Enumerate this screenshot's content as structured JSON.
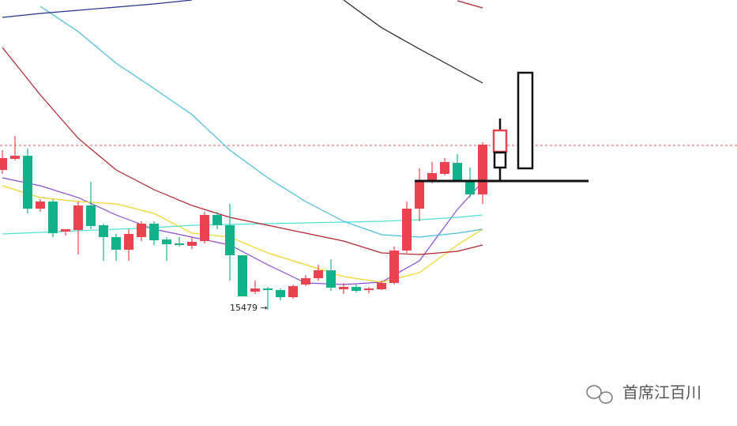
{
  "chart_data": {
    "type": "candlestick",
    "categories": [
      null,
      null,
      null,
      null,
      null,
      null,
      null,
      null,
      null,
      null,
      null,
      null,
      null,
      null,
      null,
      null,
      null,
      null,
      null,
      null,
      null,
      null,
      null,
      null,
      null,
      null,
      null,
      null,
      null,
      null,
      null,
      null,
      null,
      null,
      null,
      null,
      null,
      null,
      null
    ],
    "open": [
      16119,
      16175,
      16191,
      15923,
      15959,
      15807,
      15815,
      15939,
      15839,
      15779,
      15715,
      15779,
      15847,
      15767,
      15747,
      15735,
      15759,
      15891,
      15839,
      15687,
      15503,
      15519,
      15511,
      15475,
      15539,
      15571,
      15611,
      15515,
      15527,
      15511,
      15515,
      15547,
      15711,
      15923,
      16063,
      16099,
      16155,
      16067,
      15995
    ],
    "high": [
      16219,
      16291,
      16227,
      15971,
      15971,
      15819,
      15959,
      16059,
      15847,
      15795,
      15819,
      15859,
      15859,
      15779,
      15779,
      15779,
      15907,
      15907,
      15947,
      15687,
      15559,
      15527,
      15519,
      15539,
      15587,
      15639,
      15667,
      15547,
      15539,
      15527,
      15559,
      15731,
      15959,
      16127,
      16159,
      16179,
      16199,
      16131,
      16259
    ],
    "low": [
      16099,
      16167,
      15899,
      15907,
      15779,
      15787,
      15691,
      15819,
      15659,
      15659,
      15659,
      15759,
      15739,
      15659,
      15731,
      15719,
      15747,
      15819,
      15559,
      15479,
      15491,
      15411,
      15459,
      15467,
      15531,
      15559,
      15507,
      15491,
      15499,
      15495,
      15511,
      15539,
      15699,
      15859,
      16051,
      16091,
      16059,
      15979,
      15947
    ],
    "close": [
      16179,
      16191,
      15923,
      15959,
      15799,
      15819,
      15939,
      15835,
      15779,
      15715,
      15795,
      15847,
      15763,
      15743,
      15739,
      15755,
      15891,
      15839,
      15687,
      15479,
      15519,
      15511,
      15475,
      15531,
      15571,
      15611,
      15523,
      15527,
      15507,
      15519,
      15547,
      15711,
      15923,
      16063,
      16103,
      16159,
      16067,
      15995,
      16247
    ],
    "up_color": "#e9434f",
    "down_color": "#11b289",
    "lines": [
      {
        "color": "#8a4fd6",
        "x": [
          0,
          3,
          6,
          9,
          12,
          15,
          18,
          21,
          24,
          27,
          30,
          33,
          36,
          38
        ],
        "values": [
          16079,
          16039,
          15979,
          15891,
          15819,
          15779,
          15739,
          15639,
          15547,
          15539,
          15551,
          15659,
          15919,
          16059
        ]
      },
      {
        "color": "#f2d424",
        "x": [
          0,
          3,
          6,
          9,
          12,
          15,
          18,
          21,
          24,
          27,
          30,
          33,
          36,
          38
        ],
        "values": [
          16039,
          15979,
          15959,
          15947,
          15899,
          15799,
          15779,
          15699,
          15639,
          15579,
          15551,
          15599,
          15739,
          15819
        ]
      },
      {
        "color": "#4fe0d8",
        "x": [
          0,
          3,
          6,
          9,
          12,
          15,
          18,
          21,
          24,
          27,
          30,
          33,
          36,
          38
        ],
        "values": [
          15795,
          15803,
          15811,
          15819,
          15827,
          15839,
          15843,
          15847,
          15851,
          15855,
          15859,
          15867,
          15879,
          15891
        ]
      },
      {
        "color": "#49bde0",
        "x": [
          0,
          3,
          6,
          9,
          12,
          15,
          18,
          21,
          24,
          27,
          30,
          33,
          36,
          38
        ],
        "values": [
          null,
          16947,
          16819,
          16659,
          16531,
          16399,
          16219,
          16079,
          15959,
          15859,
          15791,
          15779,
          15799,
          15819
        ]
      },
      {
        "color": "#b3222c",
        "x": [
          0,
          3,
          6,
          9,
          12,
          15,
          18,
          21,
          24,
          27,
          30,
          33,
          36,
          38
        ],
        "values": [
          16739,
          16499,
          16279,
          16119,
          16019,
          15939,
          15879,
          15839,
          15799,
          15759,
          15699,
          15691,
          15707,
          15739
        ]
      },
      {
        "color": "#23318f",
        "x": [
          0,
          3,
          6,
          9,
          12,
          15,
          18,
          21,
          24,
          27,
          30,
          33,
          36,
          38
        ],
        "values": [
          16891,
          16911,
          16927,
          16943,
          16959,
          16979,
          null,
          null,
          null,
          null,
          null,
          null,
          null,
          null
        ]
      },
      {
        "color": "#222222",
        "x": [
          0,
          3,
          6,
          9,
          12,
          15,
          18,
          21,
          24,
          27,
          30,
          33,
          36,
          38
        ],
        "values": [
          null,
          null,
          null,
          null,
          null,
          null,
          null,
          null,
          null,
          16979,
          16839,
          16731,
          16627,
          16559
        ]
      },
      {
        "color": "#b3222c",
        "x": [
          0,
          3,
          6,
          9,
          12,
          15,
          18,
          21,
          24,
          27,
          30,
          33,
          36,
          38
        ],
        "values": [
          null,
          null,
          null,
          null,
          null,
          null,
          null,
          null,
          null,
          null,
          null,
          null,
          16975,
          16939
        ]
      }
    ],
    "annotation": {
      "value": 15479,
      "label": "15479 →"
    },
    "watermark": "首席江百川",
    "xlim": [
      -0.1875,
      58.125
    ],
    "ylim": [
      14823,
      16979
    ]
  }
}
